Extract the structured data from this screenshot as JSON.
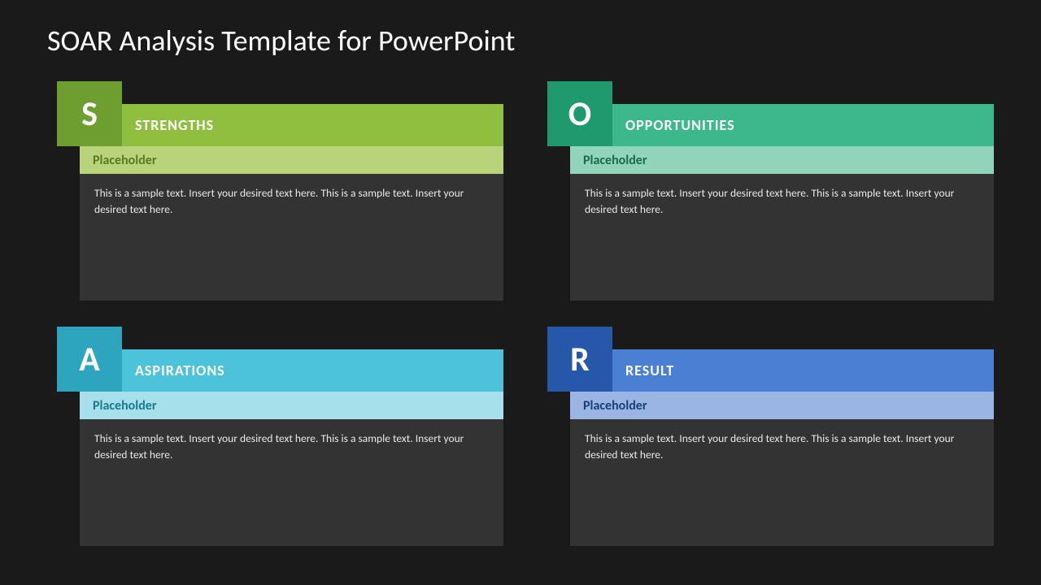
{
  "title": "SOAR Analysis Template for PowerPoint",
  "background_color": "#1a1a1a",
  "body_bg": "#333333",
  "title_color": "#ffffff",
  "cards": [
    {
      "letter": "S",
      "heading": "STRENGTHS",
      "placeholder": "Placeholder",
      "body": "This is a sample text. Insert your desired text here. This is a sample text. Insert your desired text here.",
      "letter_bg": "#6e9e2f",
      "header_bg": "#8fbf3f",
      "sub_bg": "#b9d37a",
      "sub_text_color": "#5a7a1f"
    },
    {
      "letter": "O",
      "heading": "OPPORTUNITIES",
      "placeholder": "Placeholder",
      "body": "This is a sample text. Insert your desired text here. This is a sample text. Insert your desired text here.",
      "letter_bg": "#1f9a6e",
      "header_bg": "#3bb98c",
      "sub_bg": "#90d4bb",
      "sub_text_color": "#1a6b4d"
    },
    {
      "letter": "A",
      "heading": "ASPIRATIONS",
      "placeholder": "Placeholder",
      "body": "This is a sample text. Insert your desired text here. This is a sample text. Insert your desired text here.",
      "letter_bg": "#2ea5bf",
      "header_bg": "#4dc3d9",
      "sub_bg": "#a6e0eb",
      "sub_text_color": "#1a7a8f"
    },
    {
      "letter": "R",
      "heading": "RESULT",
      "placeholder": "Placeholder",
      "body": "This is a sample text. Insert your desired text here. This is a sample text. Insert your desired text here.",
      "letter_bg": "#2558a8",
      "header_bg": "#4a7fd4",
      "sub_bg": "#9ab5e4",
      "sub_text_color": "#1a3f7a"
    }
  ]
}
